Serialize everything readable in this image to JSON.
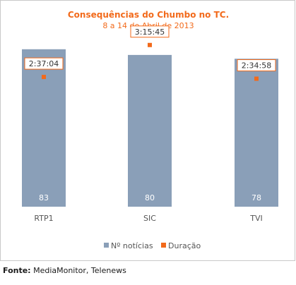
{
  "chart_data": {
    "type": "bar",
    "title": "Consequências do Chumbo no TC.",
    "subtitle": "8 a 14 de Abril de 2013",
    "categories": [
      "RTP1",
      "SIC",
      "TVI"
    ],
    "series": [
      {
        "name": "Nº notícias",
        "type": "bar",
        "values": [
          83,
          80,
          78
        ],
        "data_labels": [
          "83",
          "80",
          "78"
        ],
        "color": "#8a9fb8"
      },
      {
        "name": "Duração",
        "type": "marker",
        "values_hms": [
          "2:37:04",
          "3:15:45",
          "2:34:58"
        ],
        "values_seconds": [
          9424,
          11745,
          9298
        ],
        "data_labels": [
          "2:37:04",
          "3:15:45",
          "2:34:58"
        ],
        "color": "#f26a1b"
      }
    ],
    "bar_ylim": [
      0,
      90
    ],
    "duration_ylim": [
      0,
      12400
    ],
    "grid": false,
    "legend_position": "bottom"
  },
  "footer": {
    "source_label": "Fonte:",
    "source_text": "MediaMonitor, Telenews"
  },
  "colors": {
    "title": "#f26a1b",
    "subtitle": "#f26a1b",
    "axis_text": "#555555",
    "data_label_bar": "#ffffff",
    "label_border": "#f26a1b",
    "frame": "#c8c8c8"
  }
}
